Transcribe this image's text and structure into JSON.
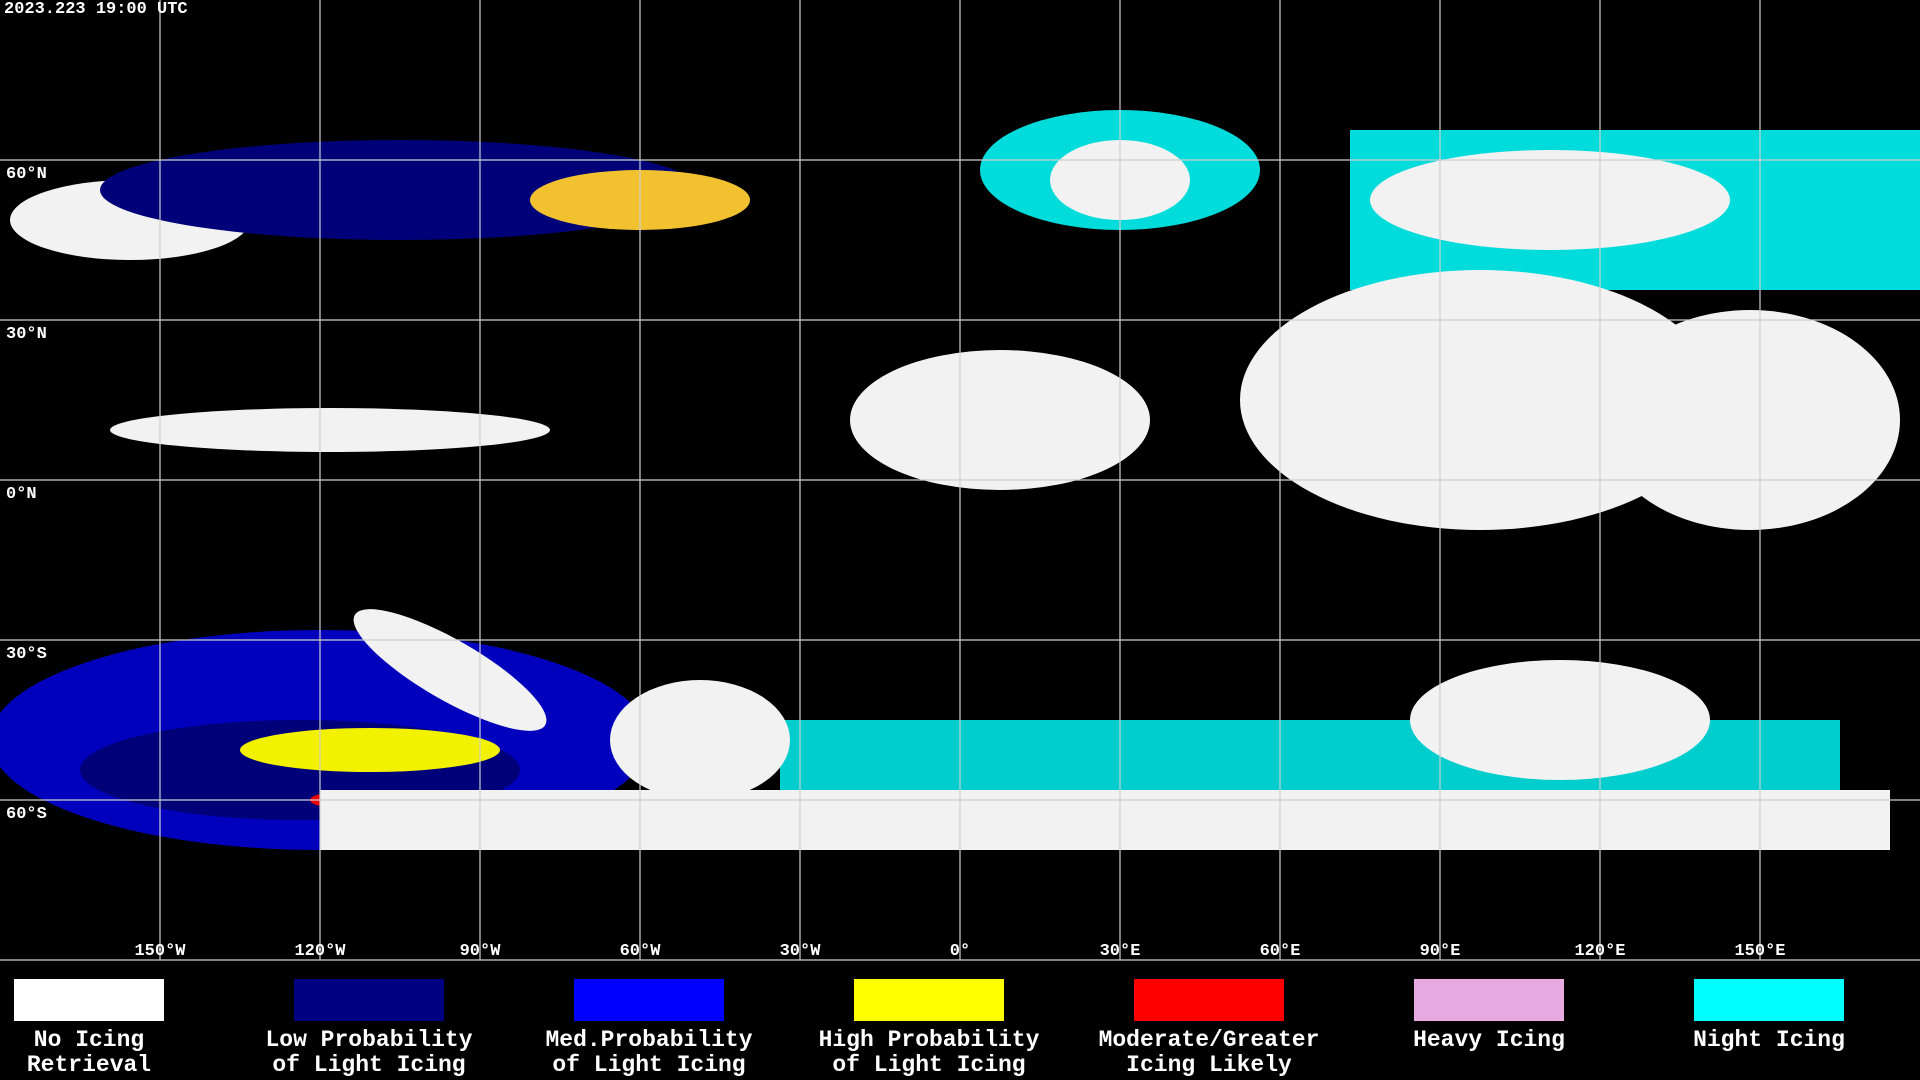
{
  "map": {
    "title": "2023.223 19:00 UTC",
    "longitudes": [
      {
        "value": -150,
        "label": "150°W"
      },
      {
        "value": -120,
        "label": "120°W"
      },
      {
        "value": -90,
        "label": "90°W"
      },
      {
        "value": -60,
        "label": "60°W"
      },
      {
        "value": -30,
        "label": "30°W"
      },
      {
        "value": 0,
        "label": "0°"
      },
      {
        "value": 30,
        "label": "30°E"
      },
      {
        "value": 60,
        "label": "60°E"
      },
      {
        "value": 90,
        "label": "90°E"
      },
      {
        "value": 120,
        "label": "120°E"
      },
      {
        "value": 150,
        "label": "150°E"
      }
    ],
    "latitudes": [
      {
        "value": 60,
        "label": "60°N"
      },
      {
        "value": 30,
        "label": "30°N"
      },
      {
        "value": 0,
        "label": "0°N"
      },
      {
        "value": -30,
        "label": "30°S"
      },
      {
        "value": -60,
        "label": "60°S"
      }
    ],
    "legend": [
      {
        "color": "#ffffff",
        "lines": [
          "No Icing",
          "Retrieval"
        ]
      },
      {
        "color": "#000080",
        "lines": [
          "Low Probability",
          "of Light Icing"
        ]
      },
      {
        "color": "#0000ff",
        "lines": [
          "Med.Probability",
          "of Light Icing"
        ]
      },
      {
        "color": "#ffff00",
        "lines": [
          "High Probability",
          "of Light Icing"
        ]
      },
      {
        "color": "#ff0000",
        "lines": [
          "Moderate/Greater",
          "Icing Likely"
        ]
      },
      {
        "color": "#e8a8e0",
        "lines": [
          "Heavy Icing"
        ]
      },
      {
        "color": "#00ffff",
        "lines": [
          "Night Icing"
        ]
      }
    ]
  }
}
